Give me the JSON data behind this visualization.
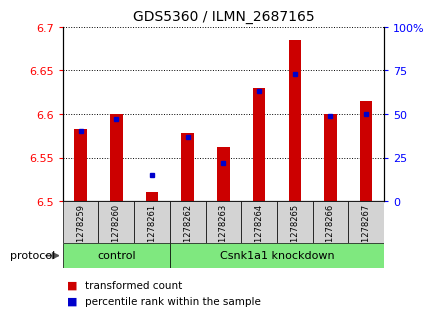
{
  "title": "GDS5360 / ILMN_2687165",
  "samples": [
    "GSM1278259",
    "GSM1278260",
    "GSM1278261",
    "GSM1278262",
    "GSM1278263",
    "GSM1278264",
    "GSM1278265",
    "GSM1278266",
    "GSM1278267"
  ],
  "red_values": [
    6.583,
    6.6,
    6.51,
    6.578,
    6.562,
    6.63,
    6.685,
    6.6,
    6.615
  ],
  "blue_values_pct": [
    40,
    47,
    15,
    37,
    22,
    63,
    73,
    49,
    50
  ],
  "ylim_left": [
    6.5,
    6.7
  ],
  "ylim_right": [
    0,
    100
  ],
  "yticks_left": [
    6.5,
    6.55,
    6.6,
    6.65,
    6.7
  ],
  "yticks_right": [
    0,
    25,
    50,
    75,
    100
  ],
  "bar_color": "#cc0000",
  "dot_color": "#0000cc",
  "baseline": 6.5,
  "groups": [
    {
      "label": "control",
      "start": 0,
      "end": 3
    },
    {
      "label": "Csnk1a1 knockdown",
      "start": 3,
      "end": 9
    }
  ],
  "group_color": "#7fe87f",
  "protocol_label": "protocol",
  "legend_items": [
    {
      "color": "#cc0000",
      "label": "transformed count"
    },
    {
      "color": "#0000cc",
      "label": "percentile rank within the sample"
    }
  ],
  "sample_box_color": "#d3d3d3",
  "plot_bg": "#ffffff",
  "bar_width": 0.35
}
